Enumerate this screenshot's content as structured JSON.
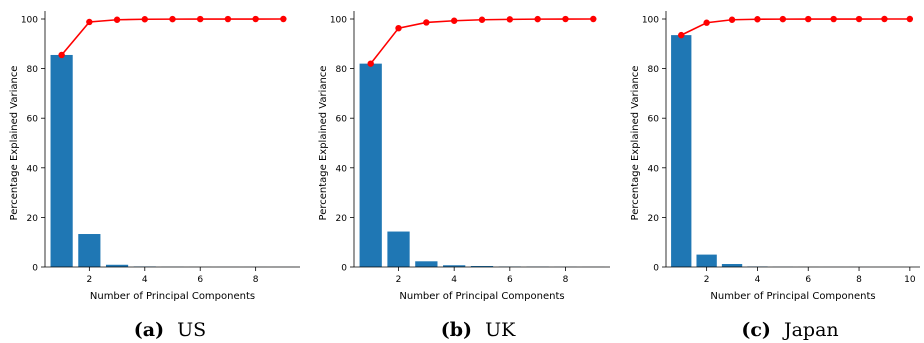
{
  "chart_data": [
    {
      "type": "bar",
      "caption_letter": "(a)",
      "caption_text": "US",
      "xlabel": "Number of Principal Components",
      "ylabel": "Percentage Explained Variance",
      "xticks": [
        2,
        4,
        6,
        8
      ],
      "yticks": [
        0,
        20,
        40,
        60,
        80,
        100
      ],
      "xlim": [
        0.4,
        9.6
      ],
      "ylim": [
        0,
        100
      ],
      "categories": [
        1,
        2,
        3,
        4,
        5,
        6,
        7,
        8,
        9
      ],
      "bar_values": [
        85.5,
        13.3,
        0.9,
        0.2,
        0.05,
        0.02,
        0.01,
        0.01,
        0.01
      ],
      "line_values": [
        85.5,
        98.8,
        99.7,
        99.9,
        99.95,
        99.97,
        99.98,
        99.99,
        100
      ],
      "bar_color": "#1f77b4",
      "line_color": "#ff0000"
    },
    {
      "type": "bar",
      "caption_letter": "(b)",
      "caption_text": "UK",
      "xlabel": "Number of Principal Components",
      "ylabel": "Percentage Explained Variance",
      "xticks": [
        2,
        4,
        6,
        8
      ],
      "yticks": [
        0,
        20,
        40,
        60,
        80,
        100
      ],
      "xlim": [
        0.4,
        9.6
      ],
      "ylim": [
        0,
        100
      ],
      "categories": [
        1,
        2,
        3,
        4,
        5,
        6,
        7,
        8,
        9
      ],
      "bar_values": [
        82,
        14.3,
        2.3,
        0.7,
        0.4,
        0.15,
        0.1,
        0.05,
        0.03
      ],
      "line_values": [
        82,
        96.3,
        98.6,
        99.3,
        99.7,
        99.85,
        99.95,
        99.99,
        100
      ],
      "bar_color": "#1f77b4",
      "line_color": "#ff0000"
    },
    {
      "type": "bar",
      "caption_letter": "(c)",
      "caption_text": "Japan",
      "xlabel": "Number of Principal Components",
      "ylabel": "Percentage Explained Variance",
      "xticks": [
        2,
        4,
        6,
        8,
        10
      ],
      "yticks": [
        0,
        20,
        40,
        60,
        80,
        100
      ],
      "xlim": [
        0.4,
        10.4
      ],
      "ylim": [
        0,
        100
      ],
      "categories": [
        1,
        2,
        3,
        4,
        5,
        6,
        7,
        8,
        9,
        10
      ],
      "bar_values": [
        93.5,
        5,
        1.2,
        0.2,
        0.05,
        0.02,
        0.01,
        0.01,
        0.005,
        0.005
      ],
      "line_values": [
        93.5,
        98.5,
        99.7,
        99.9,
        99.95,
        99.97,
        99.98,
        99.99,
        99.995,
        100
      ],
      "bar_color": "#1f77b4",
      "line_color": "#ff0000"
    }
  ]
}
